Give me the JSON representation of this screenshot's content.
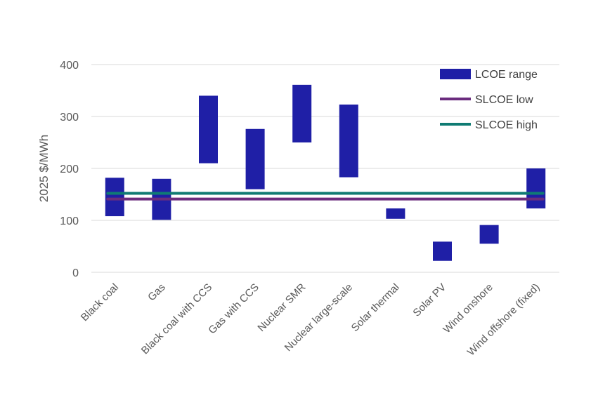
{
  "chart_data": {
    "type": "bar",
    "subtype": "floating-range-with-reference-lines",
    "title": "",
    "xlabel": "",
    "ylabel": "2025 $/MWh",
    "ylim": [
      0,
      400
    ],
    "yticks": [
      0,
      100,
      200,
      300,
      400
    ],
    "grid": true,
    "legend_position": "top-right",
    "categories": [
      "Black coal",
      "Gas",
      "Black coal with CCS",
      "Gas with CCS",
      "Nuclear SMR",
      "Nuclear large-scale",
      "Solar thermal",
      "Solar PV",
      "Wind onshore",
      "Wind offshore (fixed)"
    ],
    "range_series": {
      "name": "LCOE range",
      "color": "#1F1FA6",
      "low": [
        108,
        101,
        210,
        160,
        250,
        183,
        103,
        22,
        55,
        123
      ],
      "high": [
        182,
        180,
        340,
        276,
        361,
        323,
        123,
        59,
        91,
        200
      ]
    },
    "line_series": [
      {
        "name": "SLCOE low",
        "color": "#6B2C7E",
        "value": 141
      },
      {
        "name": "SLCOE high",
        "color": "#0F7B73",
        "value": 152
      }
    ]
  }
}
